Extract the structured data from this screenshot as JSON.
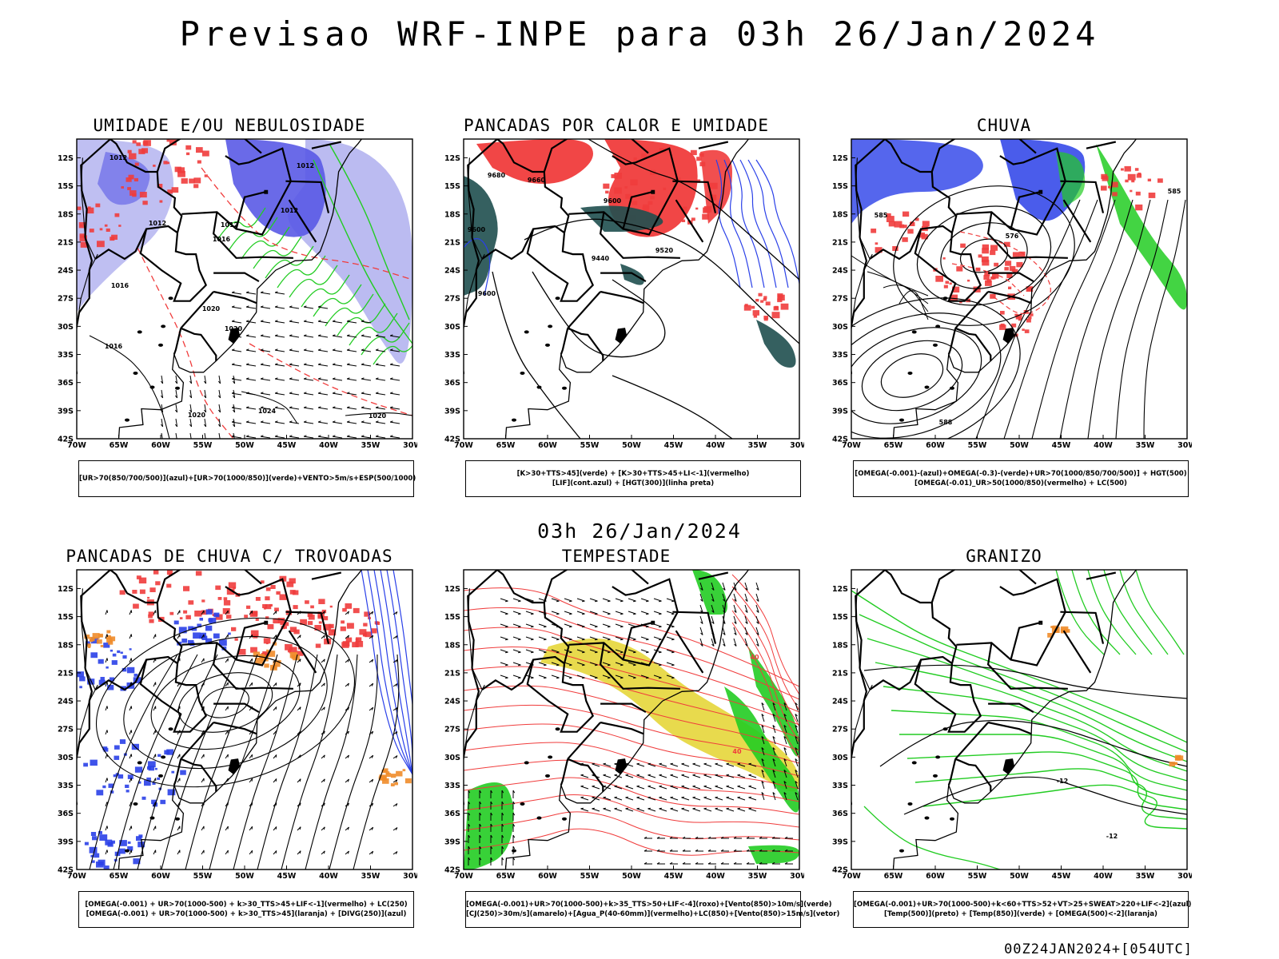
{
  "title": "Previsao WRF-INPE  para 03h 26/Jan/2024",
  "subtitle": "03h 26/Jan/2024",
  "run_label": "00Z24JAN2024+[054UTC]",
  "axes": {
    "lat_labels": [
      "12S",
      "15S",
      "18S",
      "21S",
      "24S",
      "27S",
      "30S",
      "33S",
      "36S",
      "39S",
      "42S"
    ],
    "lon_labels": [
      "70W",
      "65W",
      "60W",
      "55W",
      "50W",
      "45W",
      "40W",
      "35W",
      "30W"
    ]
  },
  "colors": {
    "red": "#f03c3c",
    "blue": "#2a40e8",
    "green": "#22cc22",
    "dark_teal": "#1f4f4f",
    "lavender": "#b4b4f0",
    "violet": "#5a5ae6",
    "yellow": "#e6d63a",
    "orange": "#f08c2a"
  },
  "panels": [
    {
      "title": "UMIDADE E/OU NEBULOSIDADE",
      "legend": [
        "[UR>70(850/700/500)](azul)+[UR>70(1000/850)](verde)+VENTO>5m/s+ESP(500/1000)"
      ],
      "contour_labels": [
        "1012",
        "1012",
        "1012",
        "1012",
        "1012",
        "1016",
        "1016",
        "1016",
        "1020",
        "1020",
        "1020",
        "1024",
        "1020"
      ]
    },
    {
      "title": "PANCADAS POR CALOR E UMIDADE",
      "legend": [
        "[K>30+TTS>45](verde) + [K>30+TTS>45+LI<-1](vermelho)",
        "[LIF](cont.azul) + [HGT(300)](linha preta)"
      ],
      "contour_labels": [
        "9680",
        "9660",
        "9600",
        "9600",
        "9520",
        "9440",
        "9600"
      ]
    },
    {
      "title": "CHUVA",
      "legend": [
        "[OMEGA(-0.001)-(azul)+OMEGA(-0.3)-(verde)+UR>70(1000/850/700/500)] + HGT(500)",
        "[OMEGA(-0.01)_UR>50(1000/850)(vermelho) + LC(500)"
      ],
      "contour_labels": [
        "585",
        "585",
        "576",
        "588"
      ]
    },
    {
      "title": "PANCADAS DE CHUVA C/ TROVOADAS",
      "legend": [
        "[OMEGA(-0.001) + UR>70(1000-500) + k>30_TTS>45+LIF<-1](vermelho) + LC(250)",
        "[OMEGA(-0.001) + UR>70(1000-500) + k>30_TTS>45](laranja) + [DIVG(250)](azul)"
      ],
      "contour_labels": []
    },
    {
      "title": "TEMPESTADE",
      "legend": [
        "[OMEGA(-0.001)+UR>70(1000-500)+k>35_TTS>50+LIF<-4](roxo)+[Vento(850)>10m/s](verde)",
        "[CJ(250)>30m/s](amarelo)+[Agua_P(40-60mm)](vermelho)+LC(850)+[Vento(850)>15m/s](vetor)"
      ],
      "contour_labels": [
        "40",
        "40"
      ]
    },
    {
      "title": "GRANIZO",
      "legend": [
        "[OMEGA(-0.001)+UR>70(1000-500)+k<60+TTS>52+VT>25+SWEAT>220+LIF<-2](azul)",
        "[Temp(500)](preto) + [Temp(850)](verde) + [OMEGA(500)<-2](laranja)"
      ],
      "contour_labels": [
        "-12",
        "-12"
      ]
    }
  ]
}
